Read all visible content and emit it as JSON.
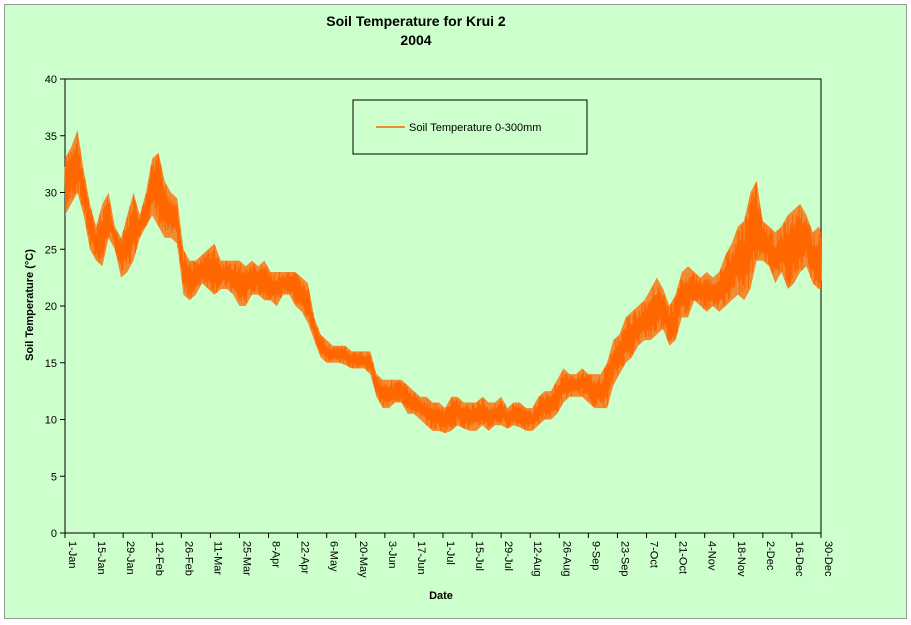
{
  "chart_data": {
    "type": "line",
    "title": "Soil Temperature for Krui 2",
    "subtitle": "2004",
    "xlabel": "Date",
    "ylabel": "Soil Temperature (°C)",
    "ylim": [
      0,
      40
    ],
    "yticks": [
      0,
      5,
      10,
      15,
      20,
      25,
      30,
      35,
      40
    ],
    "xlim": [
      "1-Jan",
      "30-Dec"
    ],
    "x_tick_labels": [
      "1-Jan",
      "15-Jan",
      "29-Jan",
      "12-Feb",
      "26-Feb",
      "11-Mar",
      "25-Mar",
      "8-Apr",
      "22-Apr",
      "6-May",
      "20-May",
      "3-Jun",
      "17-Jun",
      "1-Jul",
      "15-Jul",
      "29-Jul",
      "12-Aug",
      "26-Aug",
      "9-Sep",
      "23-Sep",
      "7-Oct",
      "21-Oct",
      "4-Nov",
      "18-Nov",
      "2-Dec",
      "16-Dec",
      "30-Dec"
    ],
    "legend_position": "top-center",
    "grid": false,
    "background_color": "#ccffcc",
    "series": [
      {
        "name": "Soil Temperature  0-300mm",
        "color": "#ff6600",
        "envelope": {
          "x": [
            "1-Jan",
            "4-Jan",
            "7-Jan",
            "10-Jan",
            "13-Jan",
            "16-Jan",
            "19-Jan",
            "22-Jan",
            "25-Jan",
            "28-Jan",
            "31-Jan",
            "3-Feb",
            "6-Feb",
            "9-Feb",
            "12-Feb",
            "15-Feb",
            "18-Feb",
            "21-Feb",
            "24-Feb",
            "27-Feb",
            "1-Mar",
            "4-Mar",
            "7-Mar",
            "10-Mar",
            "13-Mar",
            "16-Mar",
            "19-Mar",
            "22-Mar",
            "25-Mar",
            "28-Mar",
            "31-Mar",
            "3-Apr",
            "6-Apr",
            "9-Apr",
            "12-Apr",
            "15-Apr",
            "18-Apr",
            "21-Apr",
            "24-Apr",
            "27-Apr",
            "30-Apr",
            "3-May",
            "6-May",
            "9-May",
            "12-May",
            "15-May",
            "18-May",
            "21-May",
            "24-May",
            "27-May",
            "30-May",
            "2-Jun",
            "5-Jun",
            "8-Jun",
            "11-Jun",
            "14-Jun",
            "17-Jun",
            "20-Jun",
            "23-Jun",
            "26-Jun",
            "29-Jun",
            "2-Jul",
            "5-Jul",
            "8-Jul",
            "11-Jul",
            "14-Jul",
            "17-Jul",
            "20-Jul",
            "23-Jul",
            "26-Jul",
            "29-Jul",
            "1-Aug",
            "4-Aug",
            "7-Aug",
            "10-Aug",
            "13-Aug",
            "16-Aug",
            "19-Aug",
            "22-Aug",
            "25-Aug",
            "28-Aug",
            "31-Aug",
            "3-Sep",
            "6-Sep",
            "9-Sep",
            "12-Sep",
            "15-Sep",
            "18-Sep",
            "21-Sep",
            "24-Sep",
            "27-Sep",
            "30-Sep",
            "3-Oct",
            "6-Oct",
            "9-Oct",
            "12-Oct",
            "15-Oct",
            "18-Oct",
            "21-Oct",
            "24-Oct",
            "27-Oct",
            "30-Oct",
            "2-Nov",
            "5-Nov",
            "8-Nov",
            "11-Nov",
            "14-Nov",
            "17-Nov",
            "20-Nov",
            "23-Nov",
            "26-Nov",
            "29-Nov",
            "2-Dec",
            "5-Dec",
            "8-Dec",
            "11-Dec",
            "14-Dec",
            "17-Dec",
            "20-Dec",
            "23-Dec",
            "26-Dec",
            "29-Dec",
            "30-Dec"
          ],
          "min": [
            28,
            29,
            30,
            28,
            25,
            24,
            23.5,
            26,
            25,
            22.5,
            23,
            24,
            26,
            27,
            28,
            27,
            26,
            26,
            25.5,
            21,
            20.5,
            21,
            22,
            21.5,
            21,
            21.5,
            21.5,
            21,
            20,
            20,
            21,
            21,
            20.5,
            20.5,
            20,
            21,
            21,
            20,
            19.5,
            18.5,
            17,
            15.5,
            15,
            15,
            15,
            14.8,
            14.5,
            14.5,
            14.5,
            14,
            12,
            11,
            11,
            11.5,
            11.5,
            10.5,
            10.5,
            10,
            9.5,
            9,
            9,
            8.8,
            9,
            9.5,
            9.2,
            9,
            9,
            9.5,
            9,
            9.5,
            9.5,
            9.2,
            9.5,
            9.3,
            9,
            9,
            9.5,
            10,
            10,
            10.5,
            11.5,
            12,
            12,
            12,
            11.5,
            11,
            11,
            11,
            13,
            14,
            15,
            15.5,
            16.5,
            17,
            17,
            17.5,
            18,
            16.5,
            17,
            19,
            19,
            20.5,
            20,
            19.5,
            20,
            19.5,
            20,
            20.5,
            21,
            20.5,
            21.5,
            24,
            24,
            23.5,
            22,
            23,
            21.5,
            22,
            23,
            23.5,
            22,
            21.5,
            21.5
          ],
          "max": [
            33,
            34,
            35.5,
            32,
            29,
            27,
            29,
            30,
            27,
            26,
            28,
            30,
            28,
            30,
            33,
            33.5,
            31,
            30,
            29.5,
            25,
            24,
            24,
            24.5,
            25,
            25.5,
            24,
            24,
            24,
            24,
            23.5,
            24,
            23.5,
            24,
            23,
            23,
            23,
            23,
            23,
            22.5,
            22,
            19,
            17.5,
            17,
            16.5,
            16.5,
            16.5,
            16,
            16,
            16,
            16,
            14,
            13.5,
            13.5,
            13.5,
            13.5,
            13,
            12.5,
            12,
            12,
            11.5,
            11.5,
            11,
            12,
            12,
            11.5,
            11.5,
            11.5,
            12,
            11.5,
            11.5,
            12,
            11,
            11.5,
            11.5,
            11,
            11,
            12,
            12.5,
            12.5,
            13.5,
            14.5,
            14,
            14,
            14.5,
            14,
            14,
            14,
            15,
            17,
            17.5,
            19,
            19.5,
            20,
            20.5,
            21.5,
            22.5,
            21.5,
            20,
            21,
            23,
            23.5,
            23,
            22.5,
            23,
            22.5,
            23,
            24.5,
            25.5,
            27,
            27.5,
            30,
            31,
            27.5,
            27,
            26.5,
            27,
            28,
            28.5,
            29,
            28,
            26.5,
            27,
            26.5
          ]
        }
      }
    ]
  }
}
